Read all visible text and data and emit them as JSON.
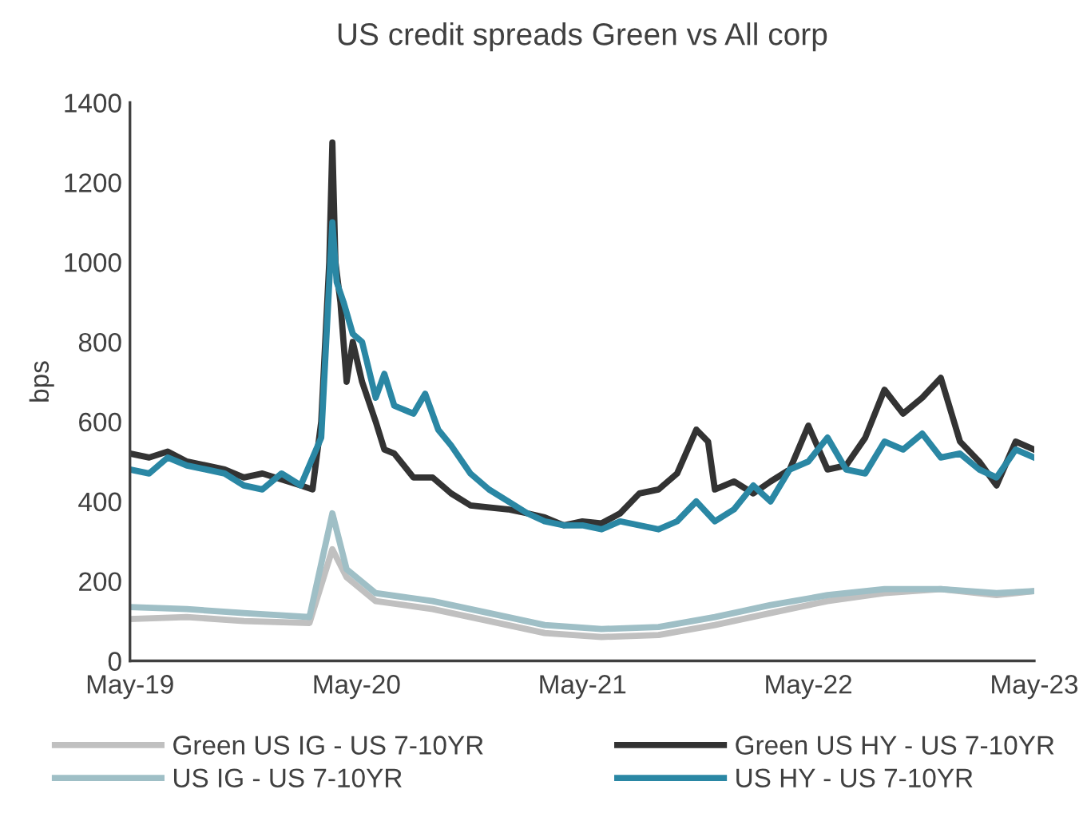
{
  "chart_data": {
    "type": "line",
    "title": "US credit spreads Green vs All corp",
    "ylabel": "bps",
    "grid": false,
    "legend": "bottom",
    "marker": "none",
    "line_style": "solid",
    "xlim": [
      "2019-05-01",
      "2023-05-01"
    ],
    "xticks": [
      {
        "value": "2019-05-01",
        "label": "May-19"
      },
      {
        "value": "2020-05-01",
        "label": "May-20"
      },
      {
        "value": "2021-05-01",
        "label": "May-21"
      },
      {
        "value": "2022-05-01",
        "label": "May-22"
      },
      {
        "value": "2023-05-01",
        "label": "May-23"
      }
    ],
    "ylim": [
      0,
      1400
    ],
    "yticks": [
      0,
      200,
      400,
      600,
      800,
      1000,
      1200,
      1400
    ],
    "series": [
      {
        "name": "Green US IG - US 7-10YR",
        "color": "#c0c0c0",
        "x": [
          "2019-05-01",
          "2019-08-01",
          "2019-11-01",
          "2020-02-15",
          "2020-03-23",
          "2020-04-15",
          "2020-06-01",
          "2020-09-01",
          "2020-12-01",
          "2021-03-01",
          "2021-06-01",
          "2021-09-01",
          "2021-12-01",
          "2022-03-01",
          "2022-06-01",
          "2022-09-01",
          "2022-12-01",
          "2023-03-01",
          "2023-05-01"
        ],
        "values": [
          105,
          110,
          100,
          95,
          280,
          210,
          150,
          130,
          100,
          70,
          60,
          65,
          90,
          120,
          150,
          170,
          180,
          165,
          175
        ]
      },
      {
        "name": "US IG - US 7-10YR",
        "color": "#9fbfc6",
        "x": [
          "2019-05-01",
          "2019-08-01",
          "2019-11-01",
          "2020-02-15",
          "2020-03-23",
          "2020-04-15",
          "2020-06-01",
          "2020-09-01",
          "2020-12-01",
          "2021-03-01",
          "2021-06-01",
          "2021-09-01",
          "2021-12-01",
          "2022-03-01",
          "2022-06-01",
          "2022-09-01",
          "2022-12-01",
          "2023-03-01",
          "2023-05-01"
        ],
        "values": [
          135,
          130,
          120,
          110,
          370,
          230,
          170,
          150,
          120,
          90,
          80,
          85,
          110,
          140,
          165,
          180,
          180,
          170,
          175
        ]
      },
      {
        "name": "Green US HY - US 7-10YR",
        "color": "#333333",
        "x": [
          "2019-05-01",
          "2019-06-01",
          "2019-07-01",
          "2019-08-01",
          "2019-09-01",
          "2019-10-01",
          "2019-11-01",
          "2019-12-01",
          "2020-01-01",
          "2020-02-01",
          "2020-02-20",
          "2020-03-05",
          "2020-03-18",
          "2020-03-23",
          "2020-03-28",
          "2020-04-05",
          "2020-04-15",
          "2020-04-25",
          "2020-05-10",
          "2020-06-01",
          "2020-06-15",
          "2020-07-01",
          "2020-08-01",
          "2020-09-01",
          "2020-10-01",
          "2020-11-01",
          "2020-12-01",
          "2021-01-01",
          "2021-02-01",
          "2021-03-01",
          "2021-04-01",
          "2021-05-01",
          "2021-06-01",
          "2021-07-01",
          "2021-08-01",
          "2021-09-01",
          "2021-10-01",
          "2021-11-01",
          "2021-11-20",
          "2021-12-01",
          "2022-01-01",
          "2022-02-01",
          "2022-03-01",
          "2022-04-01",
          "2022-05-01",
          "2022-06-01",
          "2022-07-01",
          "2022-08-01",
          "2022-09-01",
          "2022-10-01",
          "2022-11-01",
          "2022-12-01",
          "2023-01-01",
          "2023-02-01",
          "2023-03-01",
          "2023-04-01",
          "2023-05-01"
        ],
        "values": [
          520,
          510,
          525,
          500,
          490,
          480,
          460,
          470,
          455,
          440,
          430,
          600,
          1000,
          1300,
          1000,
          900,
          700,
          800,
          700,
          600,
          530,
          520,
          460,
          460,
          420,
          390,
          385,
          380,
          370,
          360,
          340,
          350,
          345,
          370,
          420,
          430,
          470,
          580,
          550,
          430,
          450,
          420,
          450,
          480,
          590,
          480,
          490,
          560,
          680,
          620,
          660,
          710,
          550,
          500,
          440,
          550,
          530
        ]
      },
      {
        "name": "US HY - US 7-10YR",
        "color": "#2a87a4",
        "x": [
          "2019-05-01",
          "2019-06-01",
          "2019-07-01",
          "2019-08-01",
          "2019-09-01",
          "2019-10-01",
          "2019-11-01",
          "2019-12-01",
          "2020-01-01",
          "2020-02-01",
          "2020-03-05",
          "2020-03-23",
          "2020-03-30",
          "2020-04-10",
          "2020-04-25",
          "2020-05-10",
          "2020-06-01",
          "2020-06-15",
          "2020-07-01",
          "2020-08-01",
          "2020-08-20",
          "2020-09-10",
          "2020-10-01",
          "2020-11-01",
          "2020-12-01",
          "2021-01-01",
          "2021-02-01",
          "2021-03-01",
          "2021-04-01",
          "2021-05-01",
          "2021-06-01",
          "2021-07-01",
          "2021-08-01",
          "2021-09-01",
          "2021-10-01",
          "2021-11-01",
          "2021-12-01",
          "2022-01-01",
          "2022-02-01",
          "2022-03-01",
          "2022-04-01",
          "2022-05-01",
          "2022-06-01",
          "2022-07-01",
          "2022-08-01",
          "2022-09-01",
          "2022-10-01",
          "2022-11-01",
          "2022-12-01",
          "2023-01-01",
          "2023-02-01",
          "2023-03-01",
          "2023-04-01",
          "2023-05-01"
        ],
        "values": [
          480,
          470,
          510,
          490,
          480,
          470,
          440,
          430,
          470,
          440,
          560,
          1100,
          950,
          900,
          820,
          800,
          660,
          720,
          640,
          620,
          670,
          580,
          540,
          470,
          430,
          400,
          370,
          350,
          340,
          340,
          330,
          350,
          340,
          330,
          350,
          400,
          350,
          380,
          440,
          400,
          480,
          500,
          560,
          480,
          470,
          550,
          530,
          570,
          510,
          520,
          480,
          460,
          530,
          510
        ]
      }
    ]
  }
}
